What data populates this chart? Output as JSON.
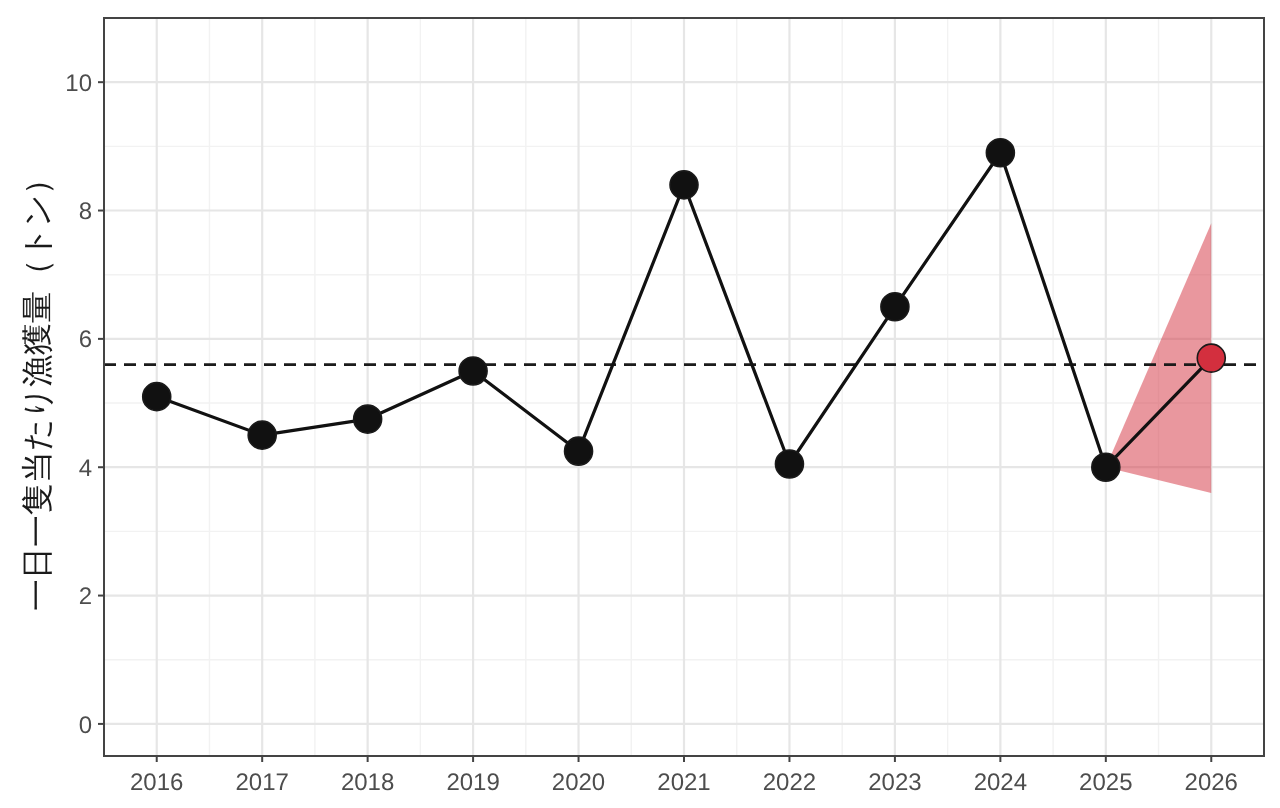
{
  "chart_data": {
    "type": "line",
    "ylabel": "一日一隻当たり漁獲量（トン）",
    "x": [
      2016,
      2017,
      2018,
      2019,
      2020,
      2021,
      2022,
      2023,
      2024,
      2025
    ],
    "series": [
      {
        "color": "#111111",
        "values": [
          5.1,
          4.5,
          4.75,
          5.5,
          4.25,
          8.4,
          4.05,
          6.5,
          8.9,
          4.0
        ]
      },
      {
        "x": [
          2025,
          2026
        ],
        "values": [
          4.0,
          5.7
        ],
        "lower": [
          4.0,
          3.6
        ],
        "upper": [
          4.0,
          7.8
        ],
        "color": "#111111",
        "colors": [
          null,
          "#d32f3e"
        ]
      }
    ],
    "xlim": [
      2015.5,
      2026.5
    ],
    "xticks": [
      2016,
      2017,
      2018,
      2019,
      2020,
      2021,
      2022,
      2023,
      2024,
      2025,
      2026
    ],
    "ylim": [
      -0.5,
      11
    ],
    "yticks": [
      0,
      2,
      4,
      6,
      8,
      10
    ],
    "ref_lines": [
      {
        "axis": "y",
        "value": 5.6,
        "color": "#1a1a1a",
        "line_style": "dashed"
      }
    ],
    "grid": true,
    "marker": "circle",
    "line_style": "solid"
  }
}
